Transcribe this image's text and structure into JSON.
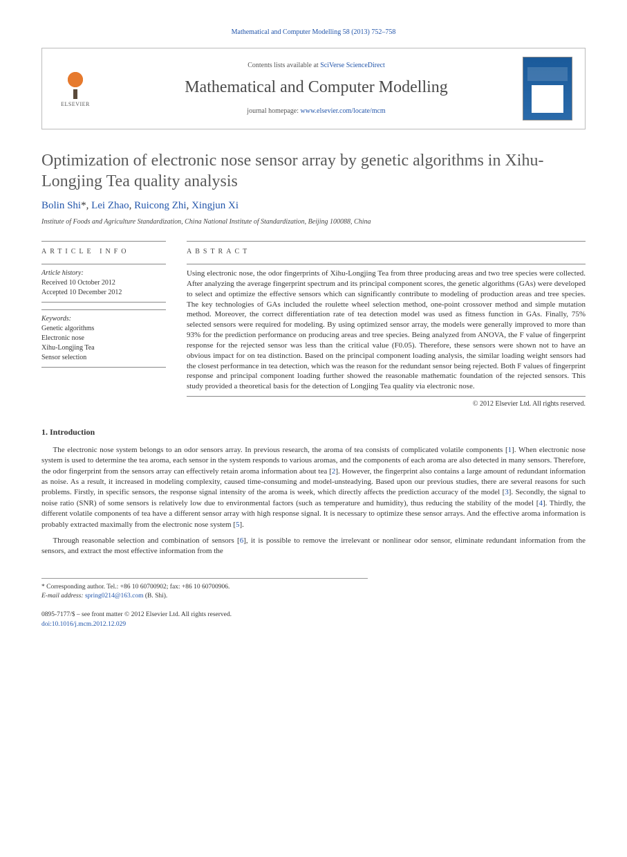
{
  "citation": {
    "journal_ref": "Mathematical and Computer Modelling 58 (2013) 752–758",
    "journal_ref_link": "Mathematical and Computer Modelling 58 (2013) 752–758"
  },
  "banner": {
    "elsevier_label": "ELSEVIER",
    "contents_prefix": "Contents lists available at ",
    "contents_link": "SciVerse ScienceDirect",
    "journal_title": "Mathematical and Computer Modelling",
    "homepage_prefix": "journal homepage: ",
    "homepage_link": "www.elsevier.com/locate/mcm"
  },
  "article": {
    "title": "Optimization of electronic nose sensor array by genetic algorithms in Xihu-Longjing Tea quality analysis",
    "authors_html": "Bolin Shi*, Lei Zhao, Ruicong Zhi, Xingjun Xi",
    "author_names": [
      "Bolin Shi",
      "Lei Zhao",
      "Ruicong Zhi",
      "Xingjun Xi"
    ],
    "corresponding_marker": "*",
    "affiliation": "Institute of Foods and Agriculture Standardization, China National Institute of Standardization, Beijing 100088, China"
  },
  "info": {
    "label": "ARTICLE INFO",
    "history_label": "Article history:",
    "received": "Received 10 October 2012",
    "accepted": "Accepted 10 December 2012",
    "keywords_label": "Keywords:",
    "keywords": [
      "Genetic algorithms",
      "Electronic nose",
      "Xihu-Longjing Tea",
      "Sensor selection"
    ]
  },
  "abstract": {
    "label": "ABSTRACT",
    "text": "Using electronic nose, the odor fingerprints of Xihu-Longjing Tea from three producing areas and two tree species were collected. After analyzing the average fingerprint spectrum and its principal component scores, the genetic algorithms (GAs) were developed to select and optimize the effective sensors which can significantly contribute to modeling of production areas and tree species. The key technologies of GAs included the roulette wheel selection method, one-point crossover method and simple mutation method. Moreover, the correct differentiation rate of tea detection model was used as fitness function in GAs. Finally, 75% selected sensors were required for modeling. By using optimized sensor array, the models were generally improved to more than 93% for the prediction performance on producing areas and tree species. Being analyzed from ANOVA, the F value of fingerprint response for the rejected sensor was less than the critical value (F0.05). Therefore, these sensors were shown not to have an obvious impact for on tea distinction. Based on the principal component loading analysis, the similar loading weight sensors had the closest performance in tea detection, which was the reason for the redundant sensor being rejected. Both F values of fingerprint response and principal component loading further showed the reasonable mathematic foundation of the rejected sensors. This study provided a theoretical basis for the detection of Longjing Tea quality via electronic nose.",
    "copyright": "© 2012 Elsevier Ltd. All rights reserved."
  },
  "body": {
    "intro_heading": "1. Introduction",
    "para1_pre": "The electronic nose system belongs to an odor sensors array. In previous research, the aroma of tea consists of complicated volatile components [",
    "ref1": "1",
    "para1_mid1": "]. When electronic nose system is used to determine the tea aroma, each sensor in the system responds to various aromas, and the components of each aroma are also detected in many sensors. Therefore, the odor fingerprint from the sensors array can effectively retain aroma information about tea [",
    "ref2": "2",
    "para1_mid2": "]. However, the fingerprint also contains a large amount of redundant information as noise. As a result, it increased in modeling complexity, caused time-consuming and model-unsteadying. Based upon our previous studies, there are several reasons for such problems. Firstly, in specific sensors, the response signal intensity of the aroma is week, which directly affects the prediction accuracy of the model [",
    "ref3": "3",
    "para1_mid3": "]. Secondly, the signal to noise ratio (SNR) of some sensors is relatively low due to environmental factors (such as temperature and humidity), thus reducing the stability of the model [",
    "ref4": "4",
    "para1_mid4": "]. Thirdly, the different volatile components of tea have a different sensor array with high response signal. It is necessary to optimize these sensor arrays. And the effective aroma information is probably extracted maximally from the electronic nose system [",
    "ref5": "5",
    "para1_end": "].",
    "para2_pre": "Through reasonable selection and combination of sensors [",
    "ref6": "6",
    "para2_end": "], it is possible to remove the irrelevant or nonlinear odor sensor, eliminate redundant information from the sensors, and extract the most effective information from the"
  },
  "footnotes": {
    "corresponding": "Corresponding author. Tel.: +86 10 60700902; fax: +86 10 60700906.",
    "email_label": "E-mail address:",
    "email": "spring0214@163.com",
    "email_author": "(B. Shi)."
  },
  "bottom": {
    "issn_line": "0895-7177/$ – see front matter © 2012 Elsevier Ltd. All rights reserved.",
    "doi_label": "doi:",
    "doi": "10.1016/j.mcm.2012.12.029"
  },
  "colors": {
    "link": "#2255aa",
    "text": "#333333",
    "heading_gray": "#5a5a5a",
    "border": "#888888",
    "elsevier_orange": "#e67a2e",
    "cover_blue": "#1a5a9a"
  }
}
